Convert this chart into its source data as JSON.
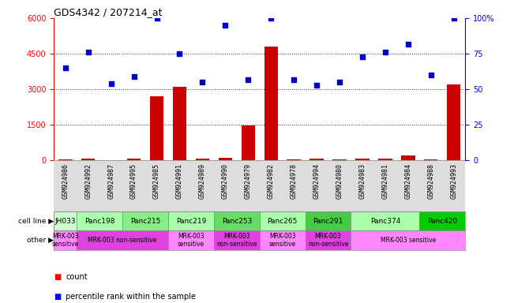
{
  "title": "GDS4342 / 207214_at",
  "samples": [
    "GSM924986",
    "GSM924992",
    "GSM924987",
    "GSM924995",
    "GSM924985",
    "GSM924991",
    "GSM924989",
    "GSM924990",
    "GSM924979",
    "GSM924982",
    "GSM924978",
    "GSM924994",
    "GSM924980",
    "GSM924983",
    "GSM924981",
    "GSM924984",
    "GSM924988",
    "GSM924993"
  ],
  "counts": [
    50,
    80,
    30,
    80,
    2700,
    3100,
    90,
    120,
    1480,
    4800,
    60,
    80,
    60,
    80,
    70,
    230,
    60,
    3200
  ],
  "percentiles": [
    65,
    76,
    54,
    59,
    100,
    75,
    55,
    95,
    57,
    100,
    57,
    53,
    55,
    73,
    76,
    82,
    60,
    100
  ],
  "cell_lines": [
    {
      "label": "JH033",
      "start": 0,
      "end": 1,
      "color": "#ccffcc"
    },
    {
      "label": "Panc198",
      "start": 1,
      "end": 3,
      "color": "#aaffaa"
    },
    {
      "label": "Panc215",
      "start": 3,
      "end": 5,
      "color": "#88ee88"
    },
    {
      "label": "Panc219",
      "start": 5,
      "end": 7,
      "color": "#aaffaa"
    },
    {
      "label": "Panc253",
      "start": 7,
      "end": 9,
      "color": "#66dd66"
    },
    {
      "label": "Panc265",
      "start": 9,
      "end": 11,
      "color": "#aaffaa"
    },
    {
      "label": "Panc291",
      "start": 11,
      "end": 13,
      "color": "#44cc44"
    },
    {
      "label": "Panc374",
      "start": 13,
      "end": 16,
      "color": "#aaffaa"
    },
    {
      "label": "Panc420",
      "start": 16,
      "end": 18,
      "color": "#00cc00"
    }
  ],
  "other_groups": [
    {
      "label": "MRK-003\nsensitive",
      "start": 0,
      "end": 1,
      "color": "#ff88ff"
    },
    {
      "label": "MRK-003 non-sensitive",
      "start": 1,
      "end": 5,
      "color": "#dd44dd"
    },
    {
      "label": "MRK-003\nsensitive",
      "start": 5,
      "end": 7,
      "color": "#ff88ff"
    },
    {
      "label": "MRK-003\nnon-sensitive",
      "start": 7,
      "end": 9,
      "color": "#dd44dd"
    },
    {
      "label": "MRK-003\nsensitive",
      "start": 9,
      "end": 11,
      "color": "#ff88ff"
    },
    {
      "label": "MRK-003\nnon-sensitive",
      "start": 11,
      "end": 13,
      "color": "#dd44dd"
    },
    {
      "label": "MRK-003 sensitive",
      "start": 13,
      "end": 18,
      "color": "#ff88ff"
    }
  ],
  "ylim_left": [
    0,
    6000
  ],
  "ylim_right": [
    0,
    100
  ],
  "yticks_left": [
    0,
    1500,
    3000,
    4500,
    6000
  ],
  "yticks_right": [
    0,
    25,
    50,
    75,
    100
  ],
  "bar_color": "#cc0000",
  "scatter_color": "#0000cc",
  "bg_color": "#ffffff",
  "xaxis_bg": "#dddddd",
  "dotted_color": "#333333"
}
